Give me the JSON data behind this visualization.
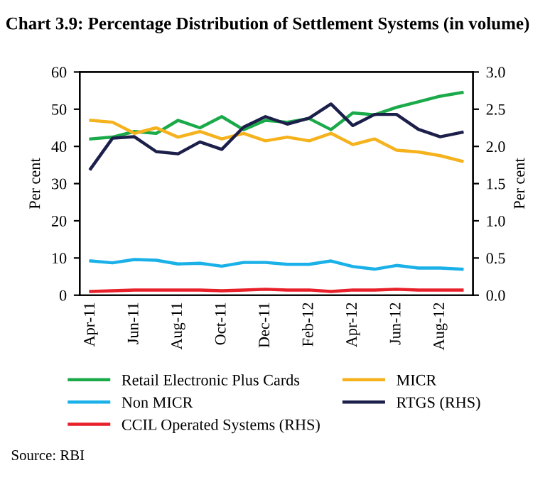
{
  "chart_data": {
    "type": "line",
    "title": "Chart 3.9: Percentage Distribution of Settlement Systems (in volume)",
    "categories": [
      "Apr-11",
      null,
      "Jun-11",
      null,
      "Aug-11",
      null,
      "Oct-11",
      null,
      "Dec-11",
      null,
      "Feb-12",
      null,
      "Apr-12",
      null,
      "Jun-12",
      null,
      "Aug-12",
      null
    ],
    "ylabel": "Per cent",
    "y2label": "Per cent",
    "ylim": [
      0,
      60
    ],
    "yticks": [
      0,
      10,
      20,
      30,
      40,
      50,
      60
    ],
    "y2lim": [
      0,
      3.0
    ],
    "y2ticks": [
      {
        "value": 0,
        "label": "0.0"
      },
      {
        "value": 0.5,
        "label": "0.5"
      },
      {
        "value": 1,
        "label": "1.0"
      },
      {
        "value": 1.5,
        "label": "1.5"
      },
      {
        "value": 2,
        "label": "2.0"
      },
      {
        "value": 2.5,
        "label": "2.5"
      },
      {
        "value": 3,
        "label": "3.0"
      }
    ],
    "grid": false,
    "legend": "bottom",
    "marker": "none",
    "line_style": "solid",
    "series": [
      {
        "name": "Retail Electronic Plus Cards",
        "color": "#1aaa4a",
        "values": [
          42,
          42.5,
          44,
          43.5,
          47,
          45,
          48,
          44.5,
          47,
          46.5,
          47.5,
          44.5,
          49,
          48.5,
          50.5,
          52,
          53.5,
          54.5
        ]
      },
      {
        "name": "Non MICR",
        "color": "#1ab0e8",
        "values": [
          9.2,
          8.7,
          9.6,
          9.4,
          8.4,
          8.6,
          7.8,
          8.8,
          8.8,
          8.3,
          8.3,
          9.2,
          7.7,
          7.0,
          8.0,
          7.3,
          7.3,
          7.0
        ]
      },
      {
        "name": "CCIL Operated Systems (RHS)",
        "color": "#e8202a",
        "axis": "y2",
        "values": [
          0.05,
          0.06,
          0.07,
          0.07,
          0.07,
          0.07,
          0.06,
          0.07,
          0.08,
          0.07,
          0.07,
          0.05,
          0.07,
          0.07,
          0.08,
          0.07,
          0.07,
          0.07
        ]
      },
      {
        "name": "MICR",
        "color": "#f5b21c",
        "values": [
          47,
          46.5,
          43.5,
          45,
          42.5,
          44,
          42,
          43.5,
          41.5,
          42.5,
          41.5,
          43.5,
          40.5,
          42,
          39,
          38.5,
          37.5,
          36
        ]
      },
      {
        "name": "RTGS (RHS)",
        "color": "#1c1f4a",
        "axis": "y2",
        "values": [
          1.7,
          2.11,
          2.13,
          1.93,
          1.9,
          2.06,
          1.96,
          2.26,
          2.4,
          2.3,
          2.38,
          2.57,
          2.28,
          2.43,
          2.43,
          2.23,
          2.13,
          2.19
        ]
      }
    ],
    "annotations": [
      "Source: RBI"
    ]
  }
}
